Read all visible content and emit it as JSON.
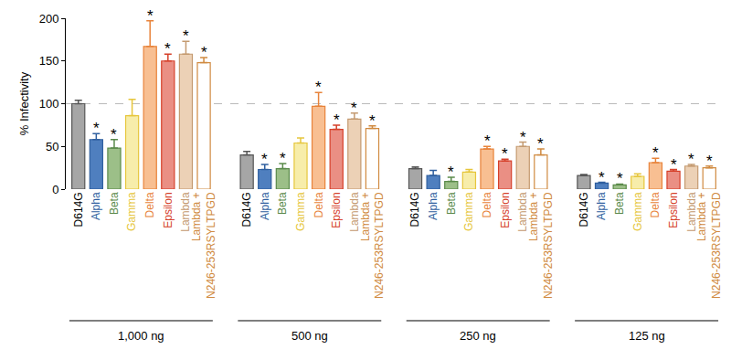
{
  "chart_data": {
    "type": "bar",
    "y_label": "% Infectivity",
    "ylim": [
      0,
      200
    ],
    "yticks": [
      0,
      50,
      100,
      150,
      200
    ],
    "grid": false,
    "reference_line": 100,
    "groups": [
      "1,000 ng",
      "500 ng",
      "250 ng",
      "125 ng"
    ],
    "marker_text": "*",
    "series": [
      {
        "name": "D614G",
        "color": "#a6a6a6",
        "label_color": "#000000",
        "values": [
          100,
          40,
          24,
          16
        ],
        "errors": [
          4,
          4,
          2,
          1
        ],
        "significant": [
          false,
          false,
          false,
          false
        ]
      },
      {
        "name": "Alpha",
        "color": "#4f7fbf",
        "label_color": "#2f5f9f",
        "values": [
          58,
          23,
          16,
          7
        ],
        "errors": [
          7,
          6,
          6,
          1
        ],
        "significant": [
          true,
          true,
          false,
          true
        ]
      },
      {
        "name": "Beta",
        "color": "#9cbf88",
        "label_color": "#5a8a4a",
        "values": [
          48,
          24,
          9,
          5
        ],
        "errors": [
          10,
          6,
          5,
          1
        ],
        "significant": [
          true,
          true,
          true,
          true
        ]
      },
      {
        "name": "Gamma",
        "color": "#f7edaa",
        "label_color": "#e6c63c",
        "values": [
          86,
          54,
          20,
          15
        ],
        "errors": [
          19,
          6,
          3,
          3
        ],
        "significant": [
          false,
          false,
          false,
          false
        ]
      },
      {
        "name": "Delta",
        "color": "#f8bf92",
        "label_color": "#e8833a",
        "values": [
          167,
          97,
          47,
          31
        ],
        "errors": [
          30,
          16,
          3,
          5
        ],
        "significant": [
          true,
          true,
          true,
          true
        ]
      },
      {
        "name": "Epsilon",
        "color": "#ea8f84",
        "label_color": "#d6402a",
        "values": [
          150,
          70,
          33,
          21
        ],
        "errors": [
          8,
          5,
          2,
          2
        ],
        "significant": [
          true,
          true,
          true,
          true
        ]
      },
      {
        "name": "Lambda",
        "color": "#ecd1b6",
        "label_color": "#c49a70",
        "values": [
          158,
          82,
          50,
          27
        ],
        "errors": [
          15,
          7,
          5,
          2
        ],
        "significant": [
          true,
          true,
          true,
          true
        ]
      },
      {
        "name": "Lambda + N246-253RSYLTPGD",
        "color": "#ffffff",
        "label_color": "#d08a40",
        "values": [
          148,
          71,
          40,
          25
        ],
        "errors": [
          6,
          3,
          7,
          2
        ],
        "significant": [
          true,
          true,
          true,
          true
        ]
      }
    ]
  }
}
